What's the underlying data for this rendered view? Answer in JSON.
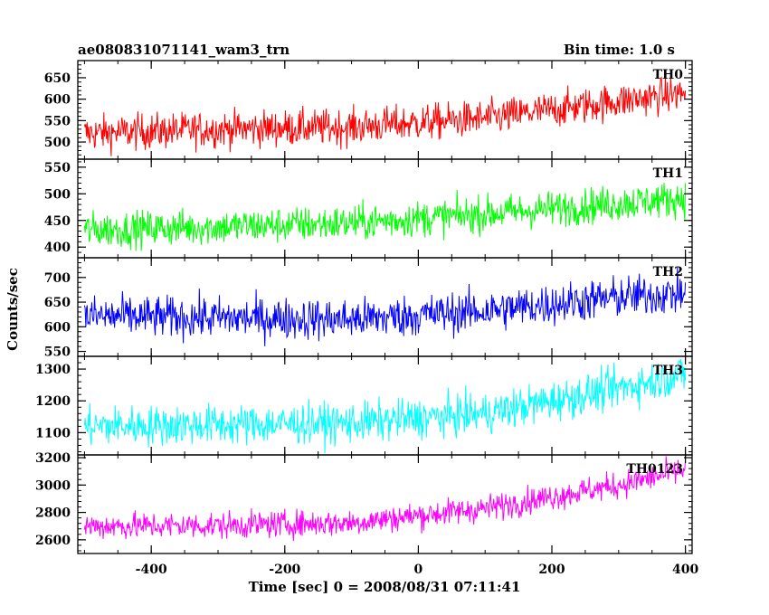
{
  "header": {
    "left": "ae080831071141_wam3_trn",
    "right": "Bin time: 1.0 s"
  },
  "chart_data": {
    "type": "line",
    "xlabel": "Time [sec] 0 = 2008/08/31 07:11:41",
    "ylabel": "Counts/sec",
    "xlim": [
      -510,
      410
    ],
    "xticks": [
      -400,
      -200,
      0,
      200,
      400
    ],
    "x_start": -500,
    "x_end": 400,
    "bin_time": 1.0,
    "grid": false,
    "panels": [
      {
        "name": "TH0",
        "color": "#ff0000",
        "ylim": [
          460,
          690
        ],
        "yticks": [
          500,
          550,
          600,
          650
        ],
        "trend_x": [
          -500,
          -300,
          -100,
          100,
          300,
          400
        ],
        "trend_y": [
          520,
          530,
          535,
          555,
          595,
          615
        ],
        "noise": 30
      },
      {
        "name": "TH1",
        "color": "#00ff00",
        "ylim": [
          380,
          565
        ],
        "yticks": [
          400,
          450,
          500,
          550
        ],
        "trend_x": [
          -500,
          -300,
          -100,
          100,
          300,
          400
        ],
        "trend_y": [
          432,
          438,
          445,
          462,
          482,
          492
        ],
        "noise": 24
      },
      {
        "name": "TH2",
        "color": "#0000ff",
        "ylim": [
          540,
          740
        ],
        "yticks": [
          550,
          600,
          650,
          700
        ],
        "trend_x": [
          -500,
          -300,
          -100,
          100,
          300,
          400
        ],
        "trend_y": [
          622,
          618,
          615,
          632,
          660,
          668
        ],
        "noise": 30
      },
      {
        "name": "TH3",
        "color": "#00ffff",
        "ylim": [
          1030,
          1340
        ],
        "yticks": [
          1100,
          1200,
          1300
        ],
        "trend_x": [
          -500,
          -300,
          -100,
          100,
          300,
          400
        ],
        "trend_y": [
          1120,
          1125,
          1130,
          1160,
          1240,
          1285
        ],
        "noise": 45
      },
      {
        "name": "TH0123",
        "color": "#ff00ff",
        "ylim": [
          2500,
          3220
        ],
        "yticks": [
          2600,
          2800,
          3000,
          3200
        ],
        "trend_x": [
          -500,
          -300,
          -100,
          100,
          300,
          400
        ],
        "trend_y": [
          2700,
          2705,
          2725,
          2830,
          3000,
          3110
        ],
        "noise": 70
      }
    ]
  }
}
